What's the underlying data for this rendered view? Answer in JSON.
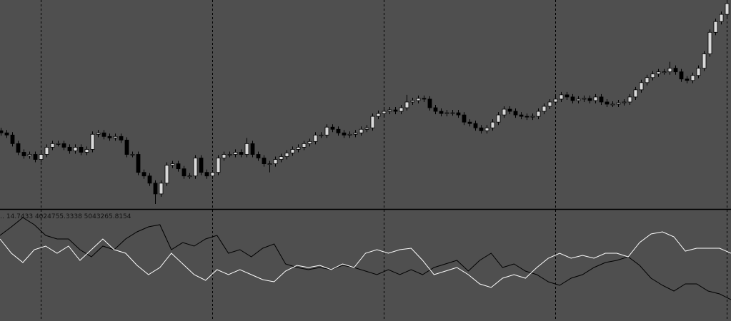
{
  "chart_data": [
    {
      "type": "candlestick",
      "ylim": [
        0,
        290
      ],
      "grid": true,
      "up_color": "#d9d9d9",
      "down_color": "#000000",
      "wick_color": "#000000",
      "open": [
        108,
        105,
        102,
        90,
        78,
        73,
        75,
        68,
        75,
        85,
        90,
        90,
        85,
        80,
        85,
        78,
        82,
        103,
        105,
        100,
        98,
        100,
        95,
        75,
        75,
        50,
        45,
        35,
        20,
        35,
        60,
        62,
        55,
        45,
        45,
        70,
        50,
        45,
        50,
        70,
        75,
        75,
        78,
        75,
        90,
        75,
        70,
        62,
        62,
        68,
        72,
        77,
        82,
        85,
        90,
        93,
        102,
        102,
        113,
        110,
        105,
        102,
        103,
        105,
        110,
        112,
        128,
        132,
        135,
        137,
        135,
        140,
        148,
        150,
        153,
        152,
        140,
        135,
        132,
        133,
        133,
        130,
        120,
        118,
        112,
        108,
        112,
        120,
        130,
        138,
        135,
        130,
        128,
        127,
        128,
        135,
        142,
        148,
        152,
        158,
        155,
        150,
        152,
        153,
        150,
        155,
        148,
        145,
        145,
        147,
        148,
        155,
        165,
        175,
        182,
        187,
        190,
        190,
        195,
        190,
        180,
        178,
        185,
        195,
        215,
        245,
        260,
        270
      ],
      "high": [
        112,
        109,
        106,
        94,
        82,
        79,
        79,
        79,
        89,
        94,
        94,
        94,
        89,
        89,
        89,
        86,
        107,
        109,
        109,
        104,
        104,
        104,
        99,
        79,
        79,
        54,
        49,
        39,
        39,
        64,
        66,
        66,
        59,
        49,
        74,
        74,
        54,
        54,
        74,
        79,
        79,
        82,
        82,
        98,
        94,
        79,
        74,
        66,
        72,
        76,
        81,
        86,
        89,
        94,
        97,
        106,
        106,
        117,
        117,
        114,
        109,
        107,
        109,
        114,
        116,
        132,
        136,
        139,
        141,
        141,
        144,
        158,
        154,
        157,
        157,
        156,
        144,
        139,
        137,
        137,
        137,
        134,
        124,
        122,
        116,
        116,
        124,
        134,
        142,
        142,
        139,
        134,
        132,
        132,
        139,
        146,
        152,
        156,
        162,
        162,
        159,
        156,
        157,
        157,
        159,
        159,
        152,
        149,
        151,
        152,
        159,
        169,
        179,
        186,
        191,
        194,
        194,
        204,
        199,
        194,
        184,
        189,
        199,
        219,
        249,
        264,
        274,
        290
      ],
      "low": [
        101,
        98,
        86,
        74,
        69,
        69,
        64,
        64,
        71,
        81,
        86,
        81,
        76,
        76,
        74,
        74,
        78,
        99,
        96,
        94,
        94,
        91,
        71,
        71,
        46,
        41,
        31,
        6,
        16,
        31,
        56,
        51,
        41,
        41,
        41,
        46,
        41,
        41,
        46,
        66,
        71,
        71,
        71,
        71,
        71,
        66,
        58,
        50,
        58,
        64,
        68,
        73,
        78,
        81,
        86,
        89,
        98,
        98,
        106,
        101,
        98,
        98,
        99,
        101,
        106,
        108,
        124,
        128,
        131,
        131,
        131,
        136,
        144,
        146,
        148,
        136,
        131,
        128,
        128,
        129,
        126,
        116,
        114,
        108,
        104,
        104,
        108,
        116,
        126,
        131,
        126,
        124,
        123,
        123,
        124,
        131,
        138,
        144,
        148,
        151,
        146,
        146,
        148,
        146,
        146,
        144,
        141,
        141,
        141,
        143,
        144,
        151,
        161,
        171,
        178,
        183,
        186,
        186,
        186,
        176,
        174,
        174,
        181,
        191,
        211,
        241,
        256,
        266
      ],
      "close": [
        105,
        102,
        90,
        78,
        73,
        75,
        68,
        75,
        85,
        90,
        90,
        85,
        80,
        85,
        78,
        82,
        103,
        105,
        100,
        98,
        100,
        95,
        75,
        75,
        50,
        45,
        35,
        20,
        35,
        60,
        62,
        55,
        45,
        45,
        70,
        50,
        45,
        50,
        70,
        75,
        75,
        78,
        75,
        90,
        75,
        70,
        62,
        62,
        68,
        72,
        77,
        82,
        85,
        90,
        93,
        102,
        102,
        113,
        110,
        105,
        102,
        103,
        105,
        110,
        112,
        128,
        132,
        135,
        137,
        135,
        140,
        148,
        150,
        153,
        152,
        140,
        135,
        132,
        133,
        133,
        130,
        120,
        118,
        112,
        108,
        112,
        120,
        130,
        138,
        135,
        130,
        128,
        127,
        128,
        135,
        142,
        148,
        152,
        158,
        155,
        150,
        152,
        153,
        150,
        155,
        148,
        145,
        145,
        147,
        148,
        155,
        165,
        175,
        182,
        187,
        190,
        190,
        195,
        190,
        180,
        178,
        185,
        195,
        215,
        245,
        260,
        270,
        285
      ]
    },
    {
      "type": "line",
      "label": "‥ 14.7433 4024755.3338 5043265.8154",
      "ylim": [
        0,
        155
      ],
      "series": [
        {
          "color": "#000000",
          "values": [
            120,
            132,
            145,
            135,
            120,
            115,
            115,
            100,
            90,
            105,
            100,
            115,
            125,
            132,
            135,
            100,
            110,
            105,
            115,
            120,
            95,
            100,
            90,
            102,
            108,
            80,
            75,
            72,
            75,
            72,
            78,
            75,
            70,
            65,
            72,
            65,
            72,
            65,
            75,
            80,
            85,
            70,
            85,
            95,
            75,
            80,
            70,
            65,
            55,
            50,
            60,
            65,
            75,
            82,
            85,
            90,
            78,
            60,
            50,
            42,
            52,
            52,
            42,
            38,
            30
          ]
        },
        {
          "color": "#ffffff",
          "values": [
            115,
            95,
            82,
            100,
            105,
            95,
            105,
            85,
            100,
            115,
            100,
            95,
            78,
            65,
            75,
            95,
            80,
            65,
            57,
            72,
            65,
            72,
            65,
            58,
            55,
            70,
            78,
            75,
            78,
            72,
            80,
            75,
            95,
            100,
            95,
            100,
            102,
            85,
            65,
            70,
            75,
            65,
            52,
            47,
            60,
            65,
            60,
            75,
            88,
            95,
            88,
            92,
            88,
            95,
            95,
            90,
            110,
            122,
            125,
            118,
            98,
            102,
            102,
            102,
            95
          ]
        }
      ]
    }
  ]
}
